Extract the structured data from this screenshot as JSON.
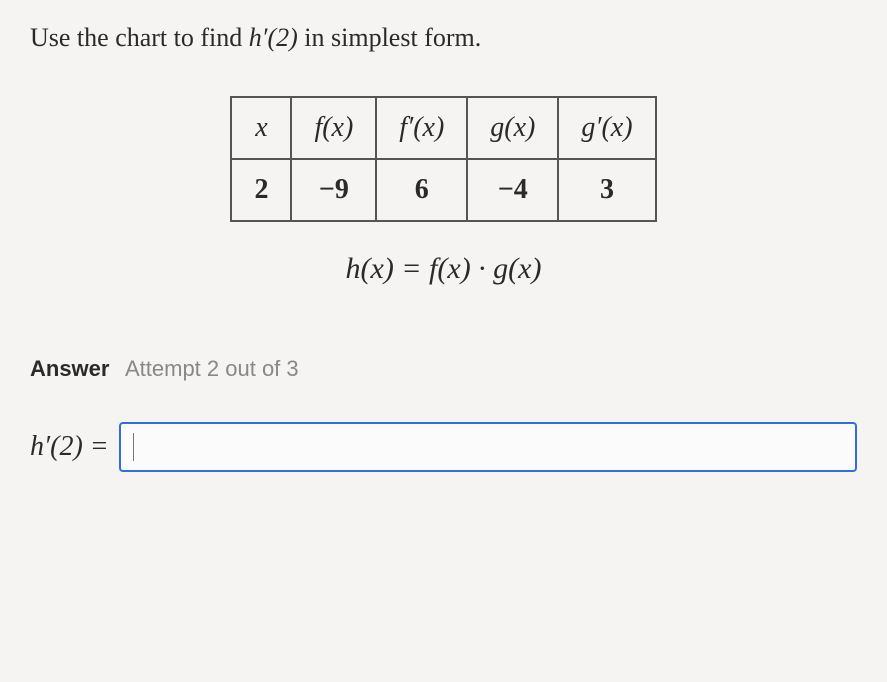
{
  "prompt": {
    "prefix": "Use the chart to find ",
    "expr": "h′(2)",
    "suffix": " in simplest form."
  },
  "table": {
    "headers": {
      "c0": "x",
      "c1": "f(x)",
      "c2": "f′(x)",
      "c3": "g(x)",
      "c4": "g′(x)"
    },
    "row": {
      "c0": "2",
      "c1": "−9",
      "c2": "6",
      "c3": "−4",
      "c4": "3"
    },
    "border_color": "#555555",
    "header_fontsize": 28,
    "cell_fontsize": 28
  },
  "equation": "h(x) = f(x) · g(x)",
  "answer": {
    "label": "Answer",
    "attempt": "Attempt 2 out of 3"
  },
  "input": {
    "label": "h′(2) =",
    "value": "",
    "border_color": "#2e6fd9"
  },
  "colors": {
    "background": "#f5f4f2",
    "text": "#2a2a2a",
    "muted": "#888888"
  }
}
